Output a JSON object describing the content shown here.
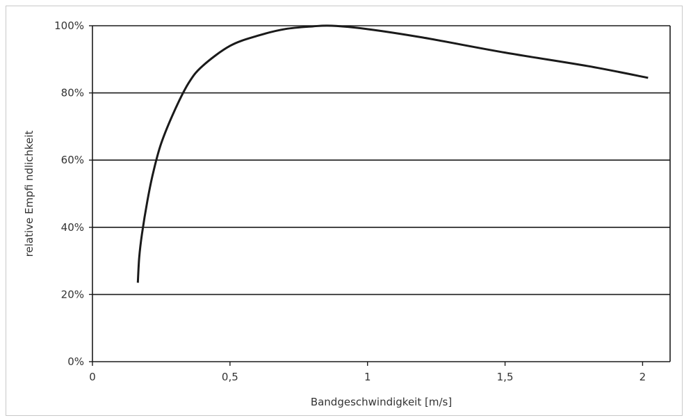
{
  "chart_data": {
    "type": "line",
    "title": "",
    "xlabel": "Bandgeschwindigkeit [m/s]",
    "ylabel": "relative Empfi ndlichkeit",
    "xlim": [
      0,
      2.1
    ],
    "ylim": [
      0,
      100
    ],
    "x_ticks": [
      0,
      0.5,
      1,
      1.5,
      2
    ],
    "x_tick_labels": [
      "0",
      "0,5",
      "1",
      "1,5",
      "2"
    ],
    "y_ticks": [
      0,
      20,
      40,
      60,
      80,
      100
    ],
    "y_tick_labels": [
      "0%",
      "20%",
      "40%",
      "60%",
      "80%",
      "100%"
    ],
    "grid": "horizontal",
    "legend": "none",
    "line_color": "#1a1a1a",
    "series": [
      {
        "x": [
          0.165,
          0.17,
          0.18,
          0.2,
          0.22,
          0.25,
          0.3,
          0.35,
          0.4,
          0.5,
          0.6,
          0.7,
          0.8,
          0.87,
          1.0,
          1.2,
          1.5,
          1.8,
          2.02
        ],
        "values": [
          23.5,
          31,
          38,
          48,
          56,
          65,
          75,
          83,
          88,
          94,
          97,
          99,
          99.8,
          100,
          99,
          96.5,
          92,
          88,
          84.5
        ]
      }
    ]
  }
}
